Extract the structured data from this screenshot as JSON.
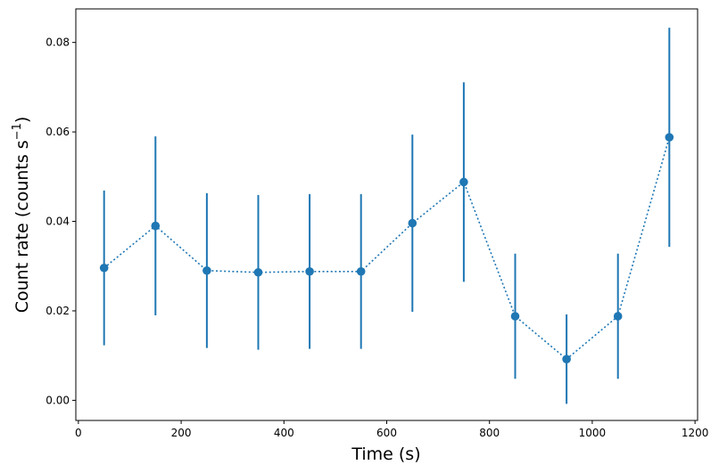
{
  "chart_data": {
    "type": "line",
    "title": "",
    "xlabel": "Time (s)",
    "ylabel": {
      "main": "Count rate (counts s",
      "superscript": "−1",
      "close": ")"
    },
    "xlim": [
      -5,
      1205
    ],
    "ylim": [
      -0.0045,
      0.0875
    ],
    "xticks": [
      0,
      200,
      400,
      600,
      800,
      1000,
      1200
    ],
    "yticks": [
      0.0,
      0.02,
      0.04,
      0.06,
      0.08
    ],
    "xtick_labels": [
      "0",
      "200",
      "400",
      "600",
      "800",
      "1000",
      "1200"
    ],
    "ytick_labels": [
      "0.00",
      "0.02",
      "0.04",
      "0.06",
      "0.08"
    ],
    "grid": false,
    "color": "#1f77b4",
    "linestyle": "dotted",
    "marker": "circle",
    "series": [
      {
        "x": [
          50,
          150,
          250,
          350,
          450,
          550,
          650,
          750,
          850,
          950,
          1050,
          1150
        ],
        "y": [
          0.0296,
          0.039,
          0.029,
          0.0286,
          0.0288,
          0.0288,
          0.0396,
          0.0488,
          0.0188,
          0.0092,
          0.0188,
          0.0588
        ],
        "err": [
          0.0173,
          0.02,
          0.0173,
          0.0173,
          0.0173,
          0.0173,
          0.0198,
          0.0223,
          0.014,
          0.01,
          0.014,
          0.0245
        ]
      }
    ]
  }
}
